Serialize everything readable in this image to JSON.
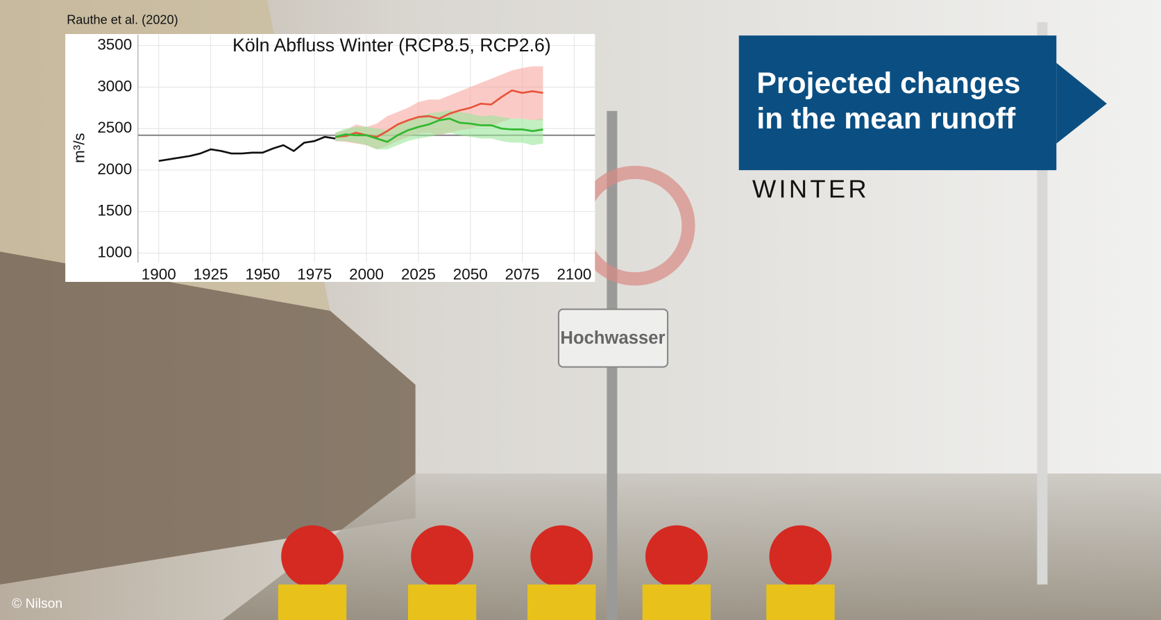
{
  "source": "Rauthe et al. (2020)",
  "heading": [
    "Projected changes",
    "in the mean runoff"
  ],
  "subheading": "WINTER",
  "credit": "© Nilson",
  "chart_data": {
    "type": "line",
    "title": "Köln Abfluss Winter (RCP8.5, RCP2.6)",
    "ylabel": "m³/s",
    "xlim": [
      1890,
      2110
    ],
    "ylim": [
      885,
      3630
    ],
    "xticks": [
      1900,
      1925,
      1950,
      1975,
      2000,
      2025,
      2050,
      2075,
      2100
    ],
    "yticks": [
      1000,
      1500,
      2000,
      2500,
      3000,
      3500
    ],
    "grid": true,
    "reference_line": 2420,
    "series": [
      {
        "color": "#111111",
        "x": [
          1900,
          1905,
          1910,
          1915,
          1920,
          1925,
          1930,
          1935,
          1940,
          1945,
          1950,
          1955,
          1960,
          1965,
          1970,
          1975,
          1980,
          1985
        ],
        "values": [
          2110,
          2130,
          2150,
          2170,
          2200,
          2250,
          2230,
          2200,
          2200,
          2210,
          2210,
          2260,
          2300,
          2230,
          2330,
          2350,
          2400,
          2380
        ]
      },
      {
        "color": "#e8533a",
        "band_color": "#f7a8a0",
        "x": [
          1985,
          1990,
          1995,
          2000,
          2005,
          2010,
          2015,
          2020,
          2025,
          2030,
          2035,
          2040,
          2045,
          2050,
          2055,
          2060,
          2065,
          2070,
          2075,
          2080,
          2085
        ],
        "values": [
          2400,
          2410,
          2450,
          2420,
          2400,
          2470,
          2550,
          2600,
          2640,
          2650,
          2620,
          2680,
          2720,
          2750,
          2800,
          2790,
          2880,
          2960,
          2930,
          2950,
          2930
        ],
        "upper": [
          2450,
          2480,
          2550,
          2520,
          2560,
          2650,
          2700,
          2750,
          2820,
          2850,
          2850,
          2900,
          2950,
          3000,
          3050,
          3100,
          3150,
          3200,
          3230,
          3250,
          3250
        ],
        "lower": [
          2350,
          2340,
          2320,
          2300,
          2250,
          2290,
          2350,
          2400,
          2440,
          2450,
          2420,
          2450,
          2480,
          2500,
          2530,
          2520,
          2580,
          2620,
          2620,
          2600,
          2600
        ]
      },
      {
        "color": "#2fb82f",
        "band_color": "#9be69b",
        "x": [
          1985,
          1990,
          1995,
          2000,
          2005,
          2010,
          2015,
          2020,
          2025,
          2030,
          2035,
          2040,
          2045,
          2050,
          2055,
          2060,
          2065,
          2070,
          2075,
          2080,
          2085
        ],
        "values": [
          2400,
          2430,
          2420,
          2420,
          2380,
          2340,
          2420,
          2480,
          2520,
          2550,
          2600,
          2620,
          2570,
          2560,
          2540,
          2540,
          2500,
          2490,
          2490,
          2470,
          2490
        ],
        "upper": [
          2450,
          2500,
          2520,
          2520,
          2500,
          2480,
          2550,
          2600,
          2650,
          2680,
          2700,
          2720,
          2700,
          2680,
          2650,
          2660,
          2640,
          2620,
          2620,
          2600,
          2620
        ],
        "lower": [
          2350,
          2350,
          2330,
          2300,
          2250,
          2250,
          2300,
          2350,
          2380,
          2400,
          2430,
          2450,
          2420,
          2400,
          2380,
          2380,
          2350,
          2330,
          2330,
          2300,
          2320
        ]
      }
    ]
  }
}
